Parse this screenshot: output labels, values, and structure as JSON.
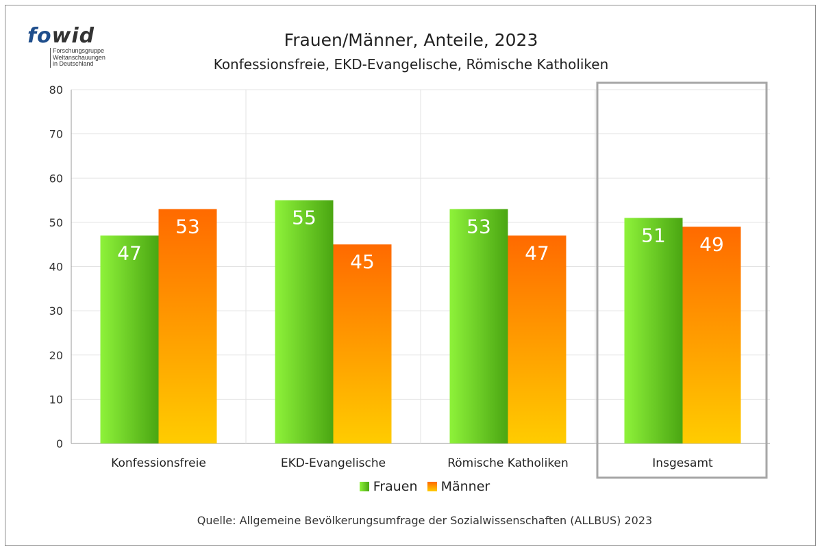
{
  "logo": {
    "brand_part1": "fo",
    "brand_part2": "wid",
    "line1": "Forschungsgruppe",
    "line2": "Weltanschauungen",
    "line3": "in Deutschland"
  },
  "chart_data": {
    "type": "bar",
    "title": "Frauen/Männer, Anteile, 2023",
    "subtitle": "Konfessionsfreie, EKD-Evangelische, Römische Katholiken",
    "categories": [
      "Konfessionsfreie",
      "EKD-Evangelische",
      "Römische Katholiken",
      "Insgesamt"
    ],
    "series": [
      {
        "name": "Frauen",
        "values": [
          47,
          55,
          53,
          51
        ],
        "color_light": "#8ef23a",
        "color_dark": "#4aa612"
      },
      {
        "name": "Männer",
        "values": [
          53,
          45,
          47,
          49
        ],
        "color_top": "#ff6a00",
        "color_bottom": "#ffcc00"
      }
    ],
    "ylim": [
      0,
      80
    ],
    "yticks": [
      0,
      10,
      20,
      30,
      40,
      50,
      60,
      70,
      80
    ],
    "xlabel": "",
    "ylabel": "",
    "grid": true,
    "legend_position": "bottom",
    "highlighted_category": "Insgesamt",
    "source": "Quelle: Allgemeine Bevölkerungsumfrage der Sozialwissenschaften (ALLBUS) 2023"
  }
}
